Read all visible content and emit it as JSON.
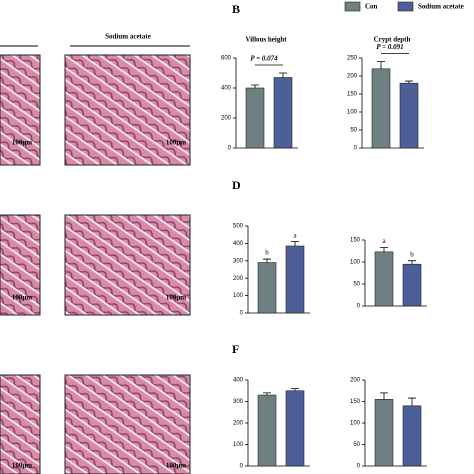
{
  "legend": [
    {
      "name": "Con",
      "color": "#6e8081"
    },
    {
      "name": "Sodium acetate",
      "color": "#4c5f98"
    }
  ],
  "panel_labels": [
    "B",
    "D",
    "F"
  ],
  "image_header": "Sodium acetate",
  "scale_labels": [
    "100μm",
    "100μm",
    "100μm",
    "100μm",
    "100μm",
    "100μm"
  ],
  "chart_data": [
    {
      "type": "bar",
      "title": "Villous height",
      "categories": [
        null,
        null
      ],
      "values": [
        400,
        470
      ],
      "errors": [
        20,
        30
      ],
      "ylim": [
        0,
        600
      ],
      "yticks": [
        0,
        200,
        400,
        600
      ],
      "annotation": "P = 0.074"
    },
    {
      "type": "bar",
      "title": "Crypt depth",
      "categories": [
        null,
        null
      ],
      "values": [
        220,
        180
      ],
      "errors": [
        20,
        6
      ],
      "ylim": [
        0,
        250
      ],
      "yticks": [
        0,
        50,
        100,
        150,
        200,
        250
      ],
      "annotation": "P = 0.091"
    },
    {
      "type": "bar",
      "categories": [
        null,
        null
      ],
      "values": [
        290,
        385
      ],
      "errors": [
        20,
        25
      ],
      "ylim": [
        0,
        500
      ],
      "yticks": [
        0,
        100,
        200,
        300,
        400,
        500
      ],
      "letters": [
        "b",
        "a"
      ]
    },
    {
      "type": "bar",
      "categories": [
        null,
        null
      ],
      "values": [
        123,
        95
      ],
      "errors": [
        10,
        8
      ],
      "ylim": [
        0,
        150
      ],
      "yticks": [
        0,
        50,
        100,
        150
      ],
      "letters": [
        "a",
        "b"
      ]
    },
    {
      "type": "bar",
      "categories": [
        null,
        null
      ],
      "values": [
        330,
        350
      ],
      "errors": [
        10,
        10
      ],
      "ylim": [
        0,
        400
      ],
      "yticks": [
        0,
        100,
        200,
        300,
        400
      ]
    },
    {
      "type": "bar",
      "categories": [
        null,
        null
      ],
      "values": [
        155,
        140
      ],
      "errors": [
        15,
        18
      ],
      "ylim": [
        0,
        200
      ],
      "yticks": [
        0,
        50,
        100,
        150,
        200
      ]
    }
  ]
}
